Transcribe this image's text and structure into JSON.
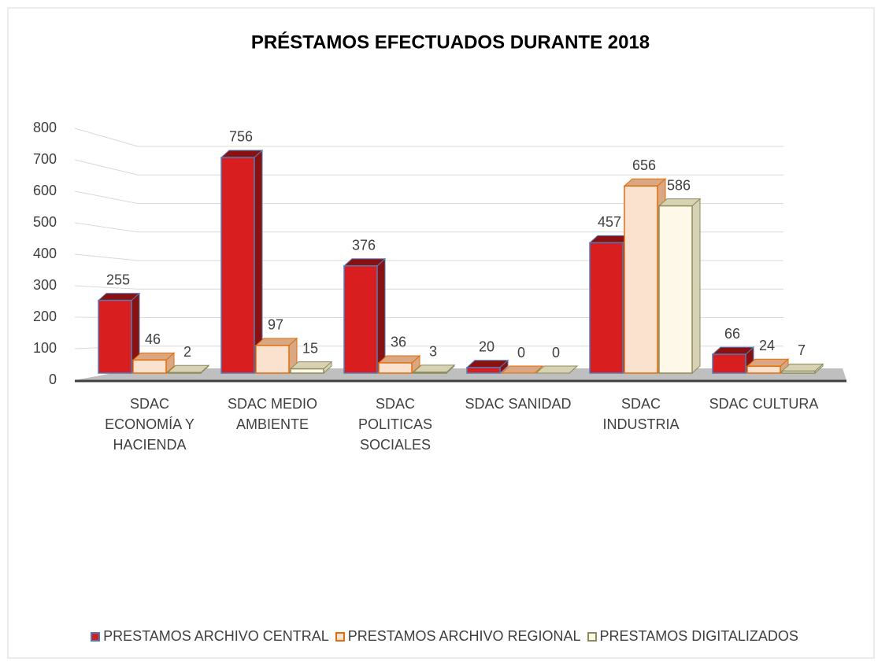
{
  "chart_data": {
    "type": "bar3d",
    "title": "PRÉSTAMOS EFECTUADOS DURANTE 2018",
    "categories": [
      "SDAC ECONOMÍA Y HACIENDA",
      "SDAC MEDIO AMBIENTE",
      "SDAC POLITICAS SOCIALES",
      "SDAC SANIDAD",
      "SDAC INDUSTRIA",
      "SDAC CULTURA"
    ],
    "series": [
      {
        "name": "PRESTAMOS ARCHIVO CENTRAL",
        "color": "#d81e1e",
        "values": [
          255,
          756,
          376,
          20,
          457,
          66
        ]
      },
      {
        "name": "PRESTAMOS ARCHIVO REGIONAL",
        "color": "#fbe2cf",
        "values": [
          46,
          97,
          36,
          0,
          656,
          24
        ]
      },
      {
        "name": "PRESTAMOS DIGITALIZADOS",
        "color": "#fdf8e8",
        "values": [
          2,
          15,
          3,
          0,
          586,
          7
        ]
      }
    ],
    "ylim": [
      0,
      800
    ],
    "yticks": [
      0,
      100,
      200,
      300,
      400,
      500,
      600,
      700,
      800
    ],
    "grid": true,
    "legend": "bottom"
  }
}
